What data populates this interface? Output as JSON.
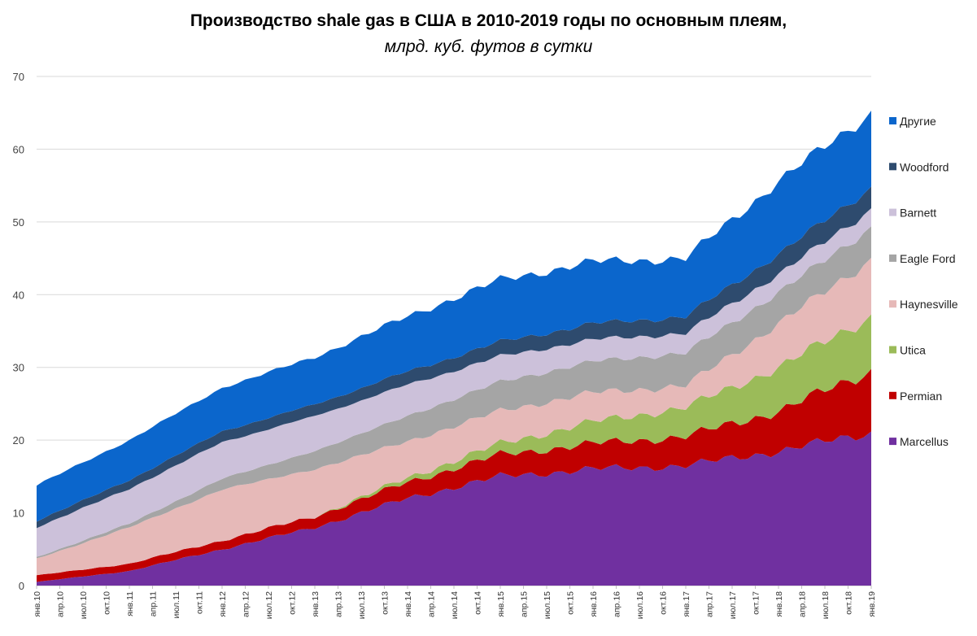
{
  "header": {
    "title": "Производство shale gas в США в 2010-2019 годы по основным плеям,",
    "subtitle": "млрд. куб. футов в сутки"
  },
  "chart_data": {
    "type": "area",
    "stacked": true,
    "title": "Производство shale gas в США в 2010-2019 годы по основным плеям,",
    "subtitle": "млрд. куб. футов в сутки",
    "xlabel": "",
    "ylabel": "",
    "ylim": [
      0,
      70
    ],
    "yticks": [
      0,
      10,
      20,
      30,
      40,
      50,
      60,
      70
    ],
    "grid": true,
    "legend_position": "right",
    "x_start": "янв.10",
    "x_end": "янв.19",
    "months": 109,
    "x_tick_labels": [
      "янв.10",
      "апр.10",
      "июл.10",
      "окт.10",
      "янв.11",
      "апр.11",
      "июл.11",
      "окт.11",
      "янв.12",
      "апр.12",
      "июл.12",
      "окт.12",
      "янв.13",
      "апр.13",
      "июл.13",
      "окт.13",
      "янв.14",
      "апр.14",
      "июл.14",
      "окт.14",
      "янв.15",
      "апр.15",
      "июл.15",
      "окт.15",
      "янв.16",
      "апр.16",
      "июл.16",
      "окт.16",
      "янв.17",
      "апр.17",
      "июл.17",
      "окт.17",
      "янв.18",
      "апр.18",
      "июл.18",
      "окт.18",
      "янв.19"
    ],
    "anchor_dates": [
      "янв.10",
      "янв.11",
      "янв.12",
      "янв.13",
      "янв.14",
      "янв.15",
      "янв.16",
      "янв.17",
      "янв.18",
      "янв.19"
    ],
    "series": [
      {
        "name": "Marcellus",
        "color": "#7030a0",
        "values": [
          0.5,
          2.0,
          5.0,
          8.0,
          12.0,
          15.0,
          16.0,
          16.5,
          18.5,
          21.0
        ]
      },
      {
        "name": "Permian",
        "color": "#c00000",
        "values": [
          0.9,
          1.0,
          1.2,
          1.5,
          2.2,
          3.0,
          3.5,
          4.0,
          5.5,
          8.5
        ]
      },
      {
        "name": "Utica",
        "color": "#9bbb59",
        "values": [
          0.0,
          0.0,
          0.0,
          0.0,
          0.6,
          1.5,
          3.0,
          4.0,
          6.0,
          7.5
        ]
      },
      {
        "name": "Haynesville",
        "color": "#e6b9b8",
        "values": [
          2.3,
          5.0,
          7.0,
          6.5,
          5.0,
          4.5,
          4.0,
          3.0,
          6.0,
          7.8
        ]
      },
      {
        "name": "Eagle Ford",
        "color": "#a5a5a5",
        "values": [
          0.2,
          0.5,
          1.5,
          2.5,
          3.5,
          4.0,
          4.3,
          4.5,
          4.3,
          4.4
        ]
      },
      {
        "name": "Barnett",
        "color": "#ccc1da",
        "values": [
          4.1,
          4.8,
          5.0,
          4.8,
          4.3,
          3.5,
          3.0,
          2.7,
          2.5,
          2.5
        ]
      },
      {
        "name": "Woodford",
        "color": "#2e4b6e",
        "values": [
          0.9,
          1.2,
          1.5,
          1.6,
          1.8,
          2.0,
          2.2,
          2.3,
          2.8,
          3.0
        ]
      },
      {
        "name": "Другие",
        "color": "#0b66cc",
        "values": [
          4.9,
          5.5,
          6.0,
          6.5,
          7.6,
          8.5,
          8.5,
          8.0,
          10.0,
          10.3
        ]
      }
    ]
  }
}
